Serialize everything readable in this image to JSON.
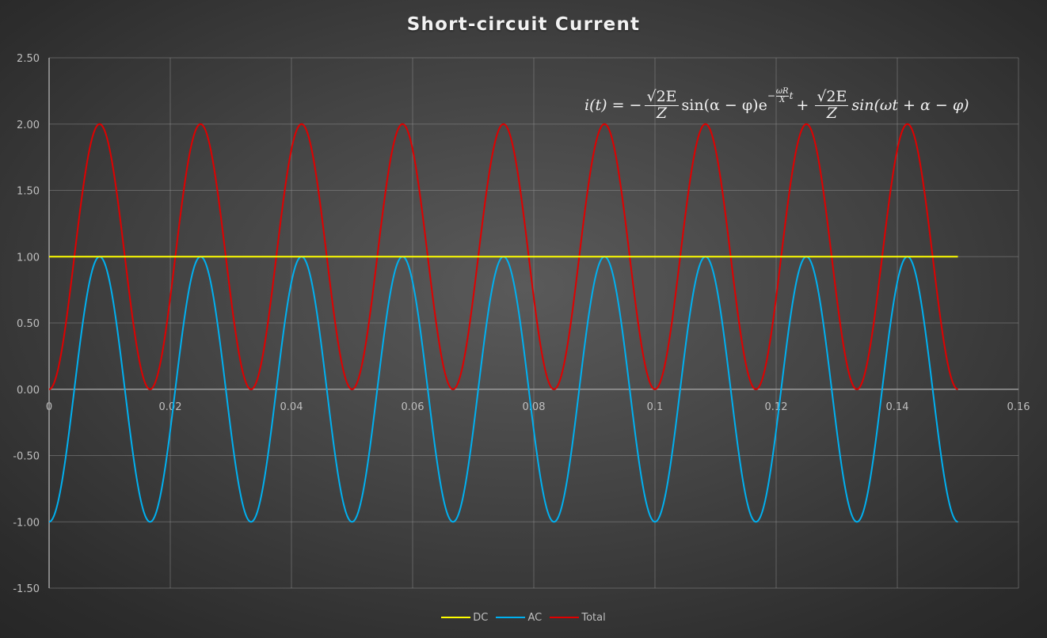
{
  "chart_data": {
    "type": "line",
    "title": "Short-circuit Current",
    "xlabel": "",
    "ylabel": "",
    "xlim": [
      0,
      0.16
    ],
    "ylim": [
      -1.5,
      2.5
    ],
    "x_ticks": [
      "0",
      "0.02",
      "0.04",
      "0.06",
      "0.08",
      "0.1",
      "0.12",
      "0.14",
      "0.16"
    ],
    "y_ticks": [
      "2.50",
      "2.00",
      "1.50",
      "1.00",
      "0.50",
      "0.00",
      "-0.50",
      "-1.00",
      "-1.50"
    ],
    "grid": true,
    "legend_position": "bottom",
    "x_range_data": [
      0,
      0.15
    ],
    "frequency_hz": 60,
    "series": [
      {
        "name": "DC",
        "color": "#ffff00",
        "description": "constant 1.00",
        "values_at_x": {
          "0": 1.0,
          "0.15": 1.0
        }
      },
      {
        "name": "AC",
        "color": "#00b0f0",
        "description": "-cos(2*pi*60*t), amplitude 1, peaks at t=0.00833+k/60",
        "values_at_x": {
          "0": -1.0,
          "0.00833": 1.0,
          "0.01667": -1.0,
          "0.025": 1.0,
          "0.15": -1.0
        }
      },
      {
        "name": "Total",
        "color": "#e00000",
        "description": "DC + AC = 1 - cos(2*pi*60*t), range 0 to 2",
        "values_at_x": {
          "0": 0.0,
          "0.00833": 2.0,
          "0.01667": 0.0,
          "0.025": 2.0,
          "0.15": 0.0
        }
      }
    ],
    "annotations": [
      "i(t) = -(√2E/Z) sin(α − φ) e^(−(ωR/X) t) + (√2E/Z) sin(ωt + α − φ)"
    ]
  },
  "formula": {
    "lhs": "i(t) = −",
    "frac1_num": "√2E",
    "frac1_den": "Z",
    "mid": "sin(α − φ)e",
    "exp_sign": "−",
    "exp_num": "ωR",
    "exp_den": "X",
    "exp_t": "t",
    "plus": "+",
    "frac2_num": "√2E",
    "frac2_den": "Z",
    "rhs": "sin(ωt + α − φ)"
  },
  "legend": {
    "items": [
      {
        "label": "DC",
        "color": "#ffff00"
      },
      {
        "label": "AC",
        "color": "#00b0f0"
      },
      {
        "label": "Total",
        "color": "#e00000"
      }
    ]
  }
}
